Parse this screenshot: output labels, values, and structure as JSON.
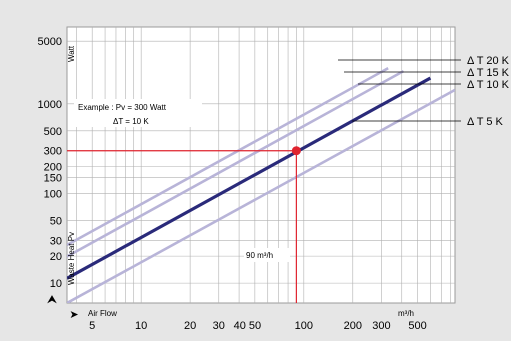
{
  "chart_data": {
    "type": "line",
    "scale": {
      "x": "log",
      "y": "log"
    },
    "grid": true,
    "axes": {
      "y_label": "Waste Heat  Pv",
      "y_unit": "Watt",
      "x_label": "Air Flow",
      "x_unit": "m³/h"
    },
    "y_ticks": [
      10,
      20,
      30,
      50,
      100,
      150,
      200,
      300,
      500,
      1000,
      5000
    ],
    "x_ticks": [
      5,
      10,
      20,
      30,
      40,
      50,
      100,
      200,
      300,
      500
    ],
    "y_tick_labels": [
      "10",
      "20",
      "30",
      "50",
      "100",
      "150",
      "200",
      "300",
      "500",
      "1000",
      "5000"
    ],
    "x_tick_labels": [
      "5",
      "10",
      "20",
      "30",
      "40 50",
      "100",
      "200",
      "300",
      "500"
    ],
    "series": [
      {
        "name": "Δ T 20 K",
        "color": "#b8b4d8",
        "x": [
          3.5,
          330
        ],
        "y": [
          26.6,
          2500
        ]
      },
      {
        "name": "Δ T 15 K",
        "color": "#b8b4d8",
        "x": [
          3.5,
          410
        ],
        "y": [
          19.8,
          2320
        ]
      },
      {
        "name": "Δ T 10 K",
        "color": "#2a2a7a",
        "x": [
          3.5,
          600
        ],
        "y": [
          11.3,
          1940
        ]
      },
      {
        "name": "Δ T 5 K",
        "color": "#b8b4d8",
        "x": [
          3.5,
          850
        ],
        "y": [
          6.0,
          1430
        ]
      }
    ],
    "example": {
      "text_line1": "Example : Pv =  300  Watt",
      "text_line2": "ΔT =  10  K",
      "point": {
        "x": 90,
        "y": 300
      },
      "airflow_label": "90  m³/h",
      "color": "#e0242f"
    },
    "axis_arrow_up": "⮝",
    "axis_arrow_right": "➤"
  }
}
